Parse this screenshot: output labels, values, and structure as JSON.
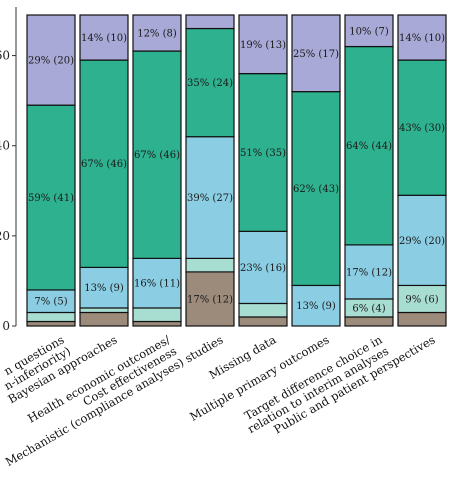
{
  "chart_data": {
    "type": "bar",
    "stacked": true,
    "percent_stacked": true,
    "grid": false,
    "legend": "none",
    "ylim": [
      0,
      69
    ],
    "yticks": [
      0,
      20,
      40,
      60
    ],
    "ytick_labels": [
      "0",
      "20",
      "40",
      "60"
    ],
    "categories": [
      "...n questions (...n-inferiority)",
      "Bayesian approaches",
      "Health economic outcomes/ Cost effectiveness",
      "Mechanistic (compliance analyses) studies",
      "Missing data",
      "Multiple primary outcomes",
      "Target difference choice in relation to interim analyses",
      "Public and patient perspectives"
    ],
    "category_lines": [
      [
        "n questions",
        "n-inferiority)"
      ],
      [
        "Bayesian approaches"
      ],
      [
        "Health economic outcomes/",
        "Cost effectiveness"
      ],
      [
        "Mechanistic (compliance analyses) studies"
      ],
      [
        "Missing data"
      ],
      [
        "Multiple primary outcomes"
      ],
      [
        "Target difference choice in",
        "relation to interim analyses"
      ],
      [
        "Public and patient perspectives"
      ]
    ],
    "segment_colors": [
      "#9c8a7b",
      "#a8ddd2",
      "#8bcde3",
      "#2eb18f",
      "#a8a9d6"
    ],
    "bars": [
      {
        "segments": [
          {
            "count": 1,
            "label": ""
          },
          {
            "count": 2,
            "label": ""
          },
          {
            "count": 5,
            "label": "7% (5)"
          },
          {
            "count": 41,
            "label": "59% (41)"
          },
          {
            "count": 20,
            "label": "29% (20)"
          }
        ]
      },
      {
        "segments": [
          {
            "count": 3,
            "label": ""
          },
          {
            "count": 1,
            "label": ""
          },
          {
            "count": 9,
            "label": "13% (9)"
          },
          {
            "count": 46,
            "label": "67% (46)"
          },
          {
            "count": 10,
            "label": "14% (10)"
          }
        ]
      },
      {
        "segments": [
          {
            "count": 1,
            "label": ""
          },
          {
            "count": 3,
            "label": ""
          },
          {
            "count": 11,
            "label": "16% (11)"
          },
          {
            "count": 46,
            "label": "67% (46)"
          },
          {
            "count": 8,
            "label": "12% (8)"
          }
        ]
      },
      {
        "segments": [
          {
            "count": 12,
            "label": "17% (12)"
          },
          {
            "count": 3,
            "label": ""
          },
          {
            "count": 27,
            "label": "39% (27)"
          },
          {
            "count": 24,
            "label": "35% (24)"
          },
          {
            "count": 3,
            "label": ""
          }
        ]
      },
      {
        "segments": [
          {
            "count": 2,
            "label": ""
          },
          {
            "count": 3,
            "label": ""
          },
          {
            "count": 16,
            "label": "23% (16)"
          },
          {
            "count": 35,
            "label": "51% (35)"
          },
          {
            "count": 13,
            "label": "19% (13)"
          }
        ]
      },
      {
        "segments": [
          {
            "count": 0,
            "label": ""
          },
          {
            "count": 0,
            "label": ""
          },
          {
            "count": 9,
            "label": "13% (9)"
          },
          {
            "count": 43,
            "label": "62% (43)"
          },
          {
            "count": 17,
            "label": "25% (17)"
          }
        ]
      },
      {
        "segments": [
          {
            "count": 2,
            "label": ""
          },
          {
            "count": 4,
            "label": "6% (4)"
          },
          {
            "count": 12,
            "label": "17% (12)"
          },
          {
            "count": 44,
            "label": "64% (44)"
          },
          {
            "count": 7,
            "label": "10% (7)"
          }
        ]
      },
      {
        "segments": [
          {
            "count": 3,
            "label": ""
          },
          {
            "count": 6,
            "label": "9% (6)"
          },
          {
            "count": 20,
            "label": "29% (20)"
          },
          {
            "count": 30,
            "label": "43% (30)"
          },
          {
            "count": 10,
            "label": "14% (10)"
          }
        ]
      }
    ]
  }
}
